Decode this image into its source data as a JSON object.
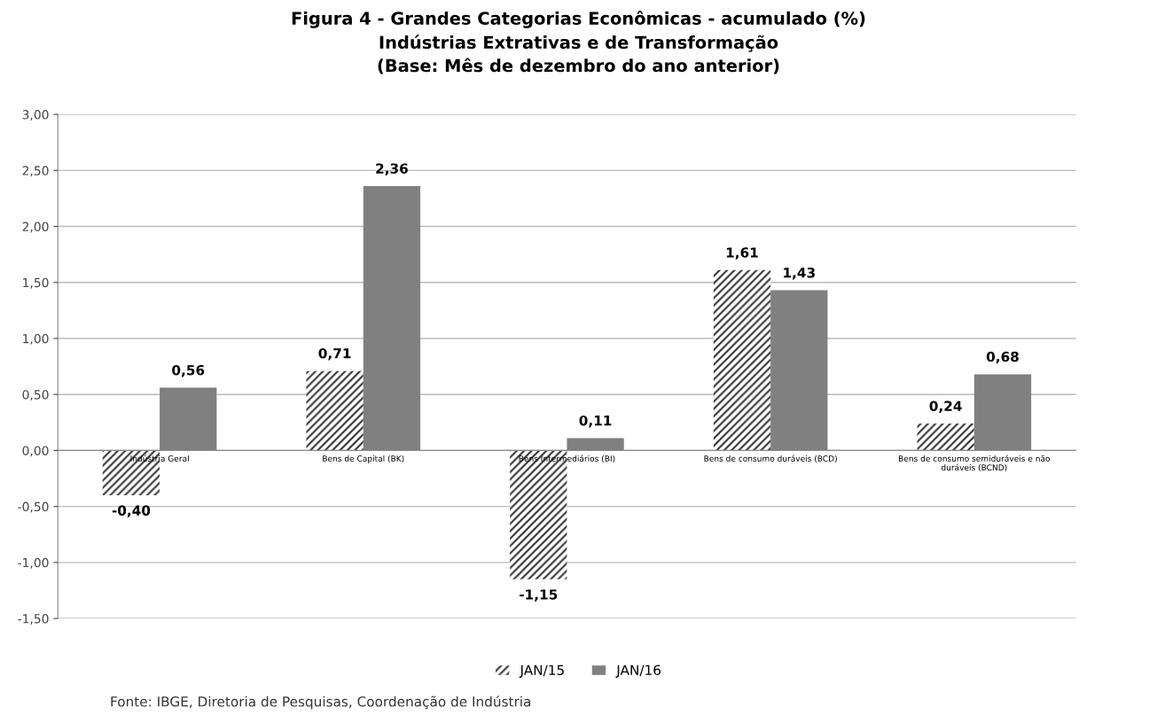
{
  "chart_data": {
    "type": "bar",
    "title": "Figura 4 - Grandes Categorias Econômicas - acumulado (%)\nIndústrias Extrativas e de Transformação\n(Base: Mês de dezembro do ano anterior)",
    "categories": [
      "Indústria Geral",
      "Bens de Capital (BK)",
      "Bens Intermediários (BI)",
      "Bens de consumo duráveis (BCD)",
      "Bens de consumo semiduráveis e não\nduráveis (BCND)"
    ],
    "series": [
      {
        "name": "JAN/15",
        "color": "#333333",
        "values": [
          -0.4,
          0.71,
          -1.15,
          1.61,
          0.24
        ],
        "value_labels": [
          "-0,40",
          "0,71",
          "-1,15",
          "1,61",
          "0,24"
        ]
      },
      {
        "name": "JAN/16",
        "color": "#808080",
        "values": [
          0.56,
          2.36,
          0.11,
          1.43,
          0.68
        ],
        "value_labels": [
          "0,56",
          "2,36",
          "0,11",
          "1,43",
          "0,68"
        ]
      }
    ],
    "ylim": [
      -1.5,
      3.0
    ],
    "yticks": [
      {
        "value": -1.5,
        "label": "-1,50"
      },
      {
        "value": -1.0,
        "label": "-1,00"
      },
      {
        "value": -0.5,
        "label": "-0,50"
      },
      {
        "value": 0,
        "label": "0,00"
      },
      {
        "value": 0.5,
        "label": "0,50"
      },
      {
        "value": 1.0,
        "label": "1,00"
      },
      {
        "value": 1.5,
        "label": "1,50"
      },
      {
        "value": 2.0,
        "label": "2,00"
      },
      {
        "value": 2.5,
        "label": "2,50"
      },
      {
        "value": 3.0,
        "label": "3,00"
      }
    ],
    "grid": "y",
    "legend": "bottom",
    "annotations": [
      "Fonte: IBGE, Diretoria de Pesquisas, Coordenação de Indústria"
    ]
  }
}
